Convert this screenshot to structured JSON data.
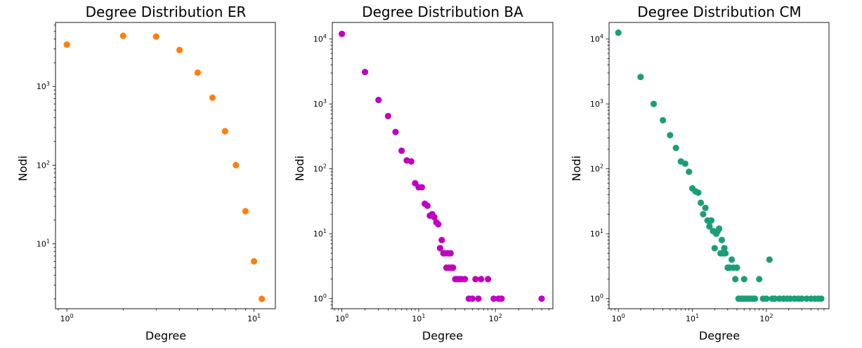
{
  "chart_data": [
    {
      "type": "scatter",
      "title": "Degree Distribution ER",
      "xlabel": "Degree",
      "ylabel": "Nodi",
      "xscale": "log",
      "yscale": "log",
      "xlim": [
        0.87,
        13
      ],
      "ylim": [
        1.5,
        6500
      ],
      "color": "#ff7f0e",
      "x_ticks": [
        {
          "value": 1,
          "base": "10",
          "exp": "0"
        },
        {
          "value": 10,
          "base": "10",
          "exp": "1"
        }
      ],
      "y_ticks": [
        {
          "value": 10,
          "base": "10",
          "exp": "1"
        },
        {
          "value": 100,
          "base": "10",
          "exp": "2"
        },
        {
          "value": 1000,
          "base": "10",
          "exp": "3"
        }
      ],
      "x": [
        1,
        2,
        3,
        4,
        5,
        6,
        7,
        8,
        9,
        10,
        11
      ],
      "y": [
        3400,
        4400,
        4300,
        2900,
        1500,
        720,
        270,
        100,
        26,
        6,
        2
      ]
    },
    {
      "type": "scatter",
      "title": "Degree Distribution BA",
      "xlabel": "Degree",
      "ylabel": "Nodi",
      "xscale": "log",
      "yscale": "log",
      "xlim": [
        0.75,
        560
      ],
      "ylim": [
        0.7,
        18000
      ],
      "color": "#bf00bf",
      "x_ticks": [
        {
          "value": 1,
          "base": "10",
          "exp": "0"
        },
        {
          "value": 10,
          "base": "10",
          "exp": "1"
        },
        {
          "value": 100,
          "base": "10",
          "exp": "2"
        }
      ],
      "y_ticks": [
        {
          "value": 1,
          "base": "10",
          "exp": "0"
        },
        {
          "value": 10,
          "base": "10",
          "exp": "1"
        },
        {
          "value": 100,
          "base": "10",
          "exp": "2"
        },
        {
          "value": 1000,
          "base": "10",
          "exp": "3"
        },
        {
          "value": 10000,
          "base": "10",
          "exp": "4"
        }
      ],
      "x": [
        1,
        2,
        3,
        4,
        5,
        6,
        7,
        8,
        9,
        10,
        11,
        12,
        13,
        14,
        15,
        16,
        17,
        18,
        19,
        20,
        21,
        22,
        23,
        24,
        25,
        26,
        27,
        28,
        30,
        32,
        34,
        36,
        40,
        45,
        50,
        55,
        60,
        65,
        80,
        95,
        110,
        120,
        400
      ],
      "y": [
        12000,
        3100,
        1150,
        650,
        370,
        190,
        135,
        130,
        60,
        52,
        52,
        29,
        27,
        19,
        20,
        18,
        15,
        14,
        6,
        8,
        5,
        5,
        3,
        5,
        3,
        5,
        3,
        3,
        2,
        2,
        2,
        2,
        2,
        1,
        1,
        2,
        1,
        2,
        2,
        1,
        1,
        1,
        1
      ]
    },
    {
      "type": "scatter",
      "title": "Degree Distribution CM",
      "xlabel": "Degree",
      "ylabel": "Nodi",
      "xscale": "log",
      "yscale": "log",
      "xlim": [
        0.75,
        700
      ],
      "ylim": [
        0.7,
        18000
      ],
      "color": "#1b9e77",
      "x_ticks": [
        {
          "value": 1,
          "base": "10",
          "exp": "0"
        },
        {
          "value": 10,
          "base": "10",
          "exp": "1"
        },
        {
          "value": 100,
          "base": "10",
          "exp": "2"
        }
      ],
      "y_ticks": [
        {
          "value": 1,
          "base": "10",
          "exp": "0"
        },
        {
          "value": 10,
          "base": "10",
          "exp": "1"
        },
        {
          "value": 100,
          "base": "10",
          "exp": "2"
        },
        {
          "value": 1000,
          "base": "10",
          "exp": "3"
        },
        {
          "value": 10000,
          "base": "10",
          "exp": "4"
        }
      ],
      "x": [
        1,
        2,
        3,
        4,
        5,
        6,
        7,
        8,
        9,
        10,
        11,
        12,
        13,
        14,
        15,
        16,
        17,
        18,
        19,
        20,
        21,
        22,
        23,
        24,
        25,
        26,
        27,
        28,
        30,
        32,
        34,
        36,
        38,
        40,
        42,
        45,
        48,
        50,
        52,
        55,
        60,
        65,
        70,
        80,
        90,
        100,
        110,
        120,
        130,
        150,
        170,
        190,
        210,
        240,
        270,
        300,
        350,
        400,
        450,
        500,
        550
      ],
      "y": [
        12500,
        2600,
        1000,
        560,
        330,
        210,
        130,
        120,
        90,
        50,
        45,
        43,
        30,
        20,
        25,
        16,
        13,
        16,
        11,
        6,
        10,
        11,
        12,
        5,
        8,
        5,
        6,
        5,
        3,
        3,
        4,
        3,
        2,
        3,
        1,
        1,
        1,
        2,
        1,
        1,
        1,
        1,
        1,
        2,
        1,
        1,
        4,
        1,
        1,
        1,
        1,
        1,
        1,
        1,
        1,
        1,
        1,
        1,
        1,
        1,
        1
      ]
    }
  ]
}
